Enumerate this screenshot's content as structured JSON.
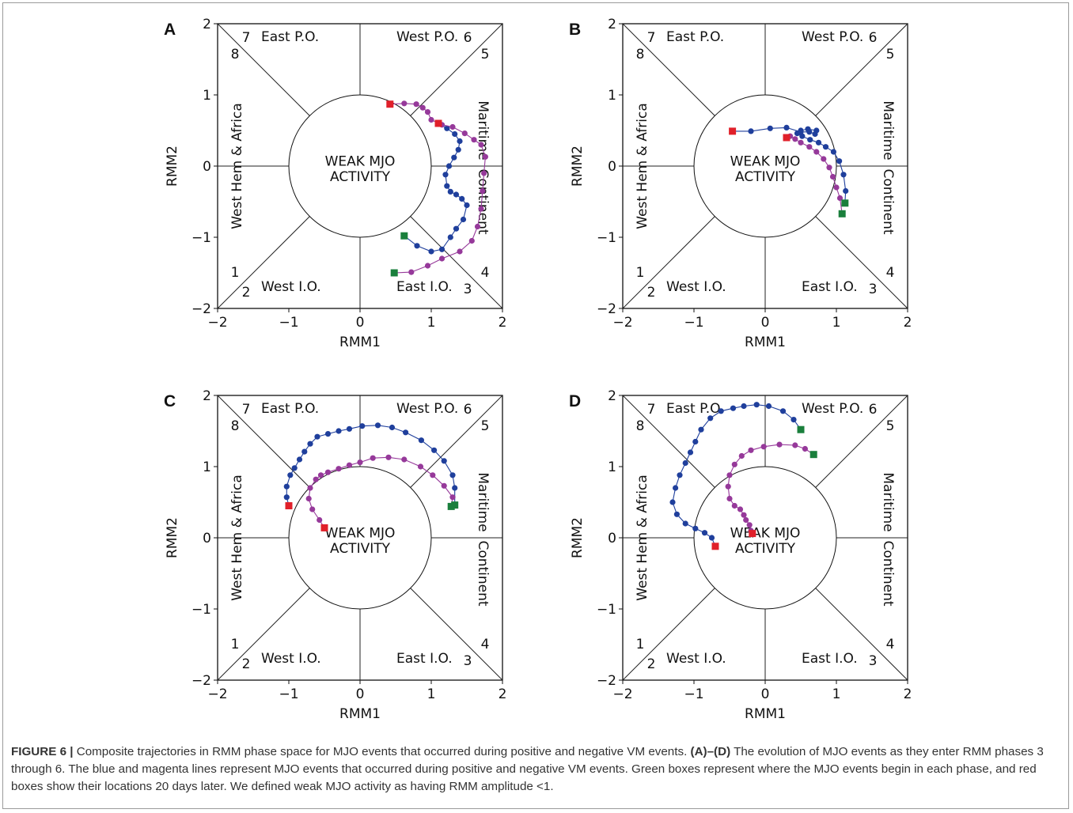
{
  "caption": {
    "label": "FIGURE 6 |",
    "segments": [
      {
        "text": " Composite trajectories in RMM phase space for MJO events that occurred during positive and negative VM events. ",
        "bold": false
      },
      {
        "text": "(A)–(D)",
        "bold": true
      },
      {
        "text": " The evolution of MJO events as they enter RMM phases 3 through 6. The blue and magenta lines represent MJO events that occurred during positive and negative VM events. Green boxes represent where the MJO events begin in each phase, and red boxes show their locations 20 days later. We defined weak MJO activity as having RMM amplitude <1.",
        "bold": false
      }
    ]
  },
  "colors": {
    "positive_vm": "#1f3f9c",
    "negative_vm": "#96399a",
    "start_box": "#1a7f3c",
    "end_box": "#e0202a"
  },
  "chart_data": [
    {
      "panel": "A",
      "type": "scatter",
      "xlabel": "RMM1",
      "ylabel": "RMM2",
      "xlim": [
        -2,
        2
      ],
      "ylim": [
        -2,
        2
      ],
      "ticks": [
        "−2",
        "−1",
        "0",
        "1",
        "2"
      ],
      "center_text": [
        "WEAK MJO",
        "ACTIVITY"
      ],
      "phase_numbers": [
        "1",
        "2",
        "3",
        "4",
        "5",
        "6",
        "7",
        "8"
      ],
      "region_labels": {
        "top": [
          "East P.O.",
          "West P.O."
        ],
        "bottom": [
          "West I.O.",
          "East I.O."
        ],
        "left": "West Hem & Africa",
        "right": [
          "Maritime",
          "Continent"
        ]
      },
      "series": [
        {
          "color": "blue",
          "points": [
            [
              0.62,
              -0.98
            ],
            [
              0.8,
              -1.12
            ],
            [
              1.0,
              -1.2
            ],
            [
              1.15,
              -1.17
            ],
            [
              1.27,
              -1.0
            ],
            [
              1.35,
              -0.88
            ],
            [
              1.45,
              -0.75
            ],
            [
              1.5,
              -0.55
            ],
            [
              1.43,
              -0.46
            ],
            [
              1.35,
              -0.4
            ],
            [
              1.27,
              -0.36
            ],
            [
              1.22,
              -0.28
            ],
            [
              1.2,
              -0.12
            ],
            [
              1.25,
              0.0
            ],
            [
              1.32,
              0.12
            ],
            [
              1.38,
              0.23
            ],
            [
              1.4,
              0.35
            ],
            [
              1.33,
              0.45
            ],
            [
              1.22,
              0.53
            ],
            [
              1.1,
              0.6
            ]
          ]
        },
        {
          "color": "magenta",
          "points": [
            [
              0.48,
              -1.5
            ],
            [
              0.72,
              -1.49
            ],
            [
              0.95,
              -1.4
            ],
            [
              1.15,
              -1.3
            ],
            [
              1.4,
              -1.2
            ],
            [
              1.57,
              -1.05
            ],
            [
              1.65,
              -0.85
            ],
            [
              1.7,
              -0.6
            ],
            [
              1.72,
              -0.35
            ],
            [
              1.74,
              -0.1
            ],
            [
              1.76,
              0.13
            ],
            [
              1.7,
              0.3
            ],
            [
              1.6,
              0.37
            ],
            [
              1.47,
              0.46
            ],
            [
              1.3,
              0.55
            ],
            [
              1.15,
              0.58
            ],
            [
              1.0,
              0.65
            ],
            [
              0.95,
              0.76
            ],
            [
              0.88,
              0.82
            ],
            [
              0.79,
              0.87
            ],
            [
              0.62,
              0.88
            ],
            [
              0.42,
              0.87
            ]
          ]
        }
      ],
      "start_boxes": [
        [
          0.62,
          -0.98
        ],
        [
          0.48,
          -1.5
        ]
      ],
      "end_boxes": [
        [
          1.1,
          0.6
        ],
        [
          0.42,
          0.87
        ]
      ]
    },
    {
      "panel": "B",
      "type": "scatter",
      "xlabel": "RMM1",
      "ylabel": "RMM2",
      "xlim": [
        -2,
        2
      ],
      "ylim": [
        -2,
        2
      ],
      "ticks": [
        "−2",
        "−1",
        "0",
        "1",
        "2"
      ],
      "center_text": [
        "WEAK MJO",
        "ACTIVITY"
      ],
      "phase_numbers": [
        "1",
        "2",
        "3",
        "4",
        "5",
        "6",
        "7",
        "8"
      ],
      "region_labels": {
        "top": [
          "East P.O.",
          "West P.O."
        ],
        "bottom": [
          "West I.O.",
          "East I.O."
        ],
        "left": "West Hem & Africa",
        "right": [
          "Maritime",
          "Continent"
        ]
      },
      "series": [
        {
          "color": "blue",
          "points": [
            [
              1.12,
              -0.52
            ],
            [
              1.13,
              -0.35
            ],
            [
              1.1,
              -0.12
            ],
            [
              1.04,
              0.07
            ],
            [
              0.96,
              0.2
            ],
            [
              0.85,
              0.27
            ],
            [
              0.75,
              0.33
            ],
            [
              0.63,
              0.37
            ],
            [
              0.52,
              0.42
            ],
            [
              0.45,
              0.46
            ],
            [
              0.5,
              0.5
            ],
            [
              0.6,
              0.52
            ],
            [
              0.72,
              0.5
            ],
            [
              0.7,
              0.45
            ],
            [
              0.62,
              0.48
            ],
            [
              0.5,
              0.48
            ],
            [
              0.3,
              0.54
            ],
            [
              0.07,
              0.53
            ],
            [
              -0.2,
              0.49
            ],
            [
              -0.46,
              0.49
            ]
          ]
        },
        {
          "color": "magenta",
          "points": [
            [
              1.08,
              -0.67
            ],
            [
              1.05,
              -0.45
            ],
            [
              1.0,
              -0.3
            ],
            [
              0.95,
              -0.15
            ],
            [
              0.9,
              -0.02
            ],
            [
              0.82,
              0.1
            ],
            [
              0.72,
              0.2
            ],
            [
              0.62,
              0.27
            ],
            [
              0.5,
              0.33
            ],
            [
              0.42,
              0.38
            ],
            [
              0.35,
              0.42
            ],
            [
              0.3,
              0.4
            ]
          ]
        }
      ],
      "start_boxes": [
        [
          1.12,
          -0.52
        ],
        [
          1.08,
          -0.67
        ]
      ],
      "end_boxes": [
        [
          -0.46,
          0.49
        ],
        [
          0.3,
          0.4
        ]
      ]
    },
    {
      "panel": "C",
      "type": "scatter",
      "xlabel": "RMM1",
      "ylabel": "RMM2",
      "xlim": [
        -2,
        2
      ],
      "ylim": [
        -2,
        2
      ],
      "ticks": [
        "−2",
        "−1",
        "0",
        "1",
        "2"
      ],
      "center_text": [
        "WEAK MJO",
        "ACTIVITY"
      ],
      "phase_numbers": [
        "1",
        "2",
        "3",
        "4",
        "5",
        "6",
        "7",
        "8"
      ],
      "region_labels": {
        "top": [
          "East P.O.",
          "West P.O."
        ],
        "bottom": [
          "West I.O.",
          "East I.O."
        ],
        "left": "West Hem & Africa",
        "right": [
          "Maritime",
          "Continent"
        ]
      },
      "series": [
        {
          "color": "blue",
          "points": [
            [
              1.33,
              0.46
            ],
            [
              1.33,
              0.7
            ],
            [
              1.3,
              0.88
            ],
            [
              1.18,
              1.08
            ],
            [
              1.04,
              1.23
            ],
            [
              0.86,
              1.37
            ],
            [
              0.64,
              1.48
            ],
            [
              0.45,
              1.55
            ],
            [
              0.25,
              1.58
            ],
            [
              0.03,
              1.57
            ],
            [
              -0.15,
              1.53
            ],
            [
              -0.3,
              1.5
            ],
            [
              -0.45,
              1.46
            ],
            [
              -0.6,
              1.42
            ],
            [
              -0.7,
              1.32
            ],
            [
              -0.78,
              1.21
            ],
            [
              -0.85,
              1.1
            ],
            [
              -0.92,
              0.98
            ],
            [
              -0.98,
              0.88
            ],
            [
              -1.03,
              0.72
            ],
            [
              -1.03,
              0.57
            ],
            [
              -1.0,
              0.45
            ]
          ]
        },
        {
          "color": "magenta",
          "points": [
            [
              1.28,
              0.44
            ],
            [
              1.3,
              0.57
            ],
            [
              1.18,
              0.73
            ],
            [
              1.02,
              0.88
            ],
            [
              0.85,
              1.0
            ],
            [
              0.62,
              1.1
            ],
            [
              0.4,
              1.13
            ],
            [
              0.18,
              1.12
            ],
            [
              0.0,
              1.06
            ],
            [
              -0.15,
              1.02
            ],
            [
              -0.3,
              0.97
            ],
            [
              -0.45,
              0.92
            ],
            [
              -0.55,
              0.88
            ],
            [
              -0.62,
              0.82
            ],
            [
              -0.7,
              0.7
            ],
            [
              -0.72,
              0.55
            ],
            [
              -0.67,
              0.4
            ],
            [
              -0.57,
              0.25
            ],
            [
              -0.5,
              0.14
            ]
          ]
        }
      ],
      "start_boxes": [
        [
          1.33,
          0.46
        ],
        [
          1.28,
          0.44
        ]
      ],
      "end_boxes": [
        [
          -1.0,
          0.45
        ],
        [
          -0.5,
          0.14
        ]
      ]
    },
    {
      "panel": "D",
      "type": "scatter",
      "xlabel": "RMM1",
      "ylabel": "RMM2",
      "xlim": [
        -2,
        2
      ],
      "ylim": [
        -2,
        2
      ],
      "ticks": [
        "−2",
        "−1",
        "0",
        "1",
        "2"
      ],
      "center_text": [
        "WEAK MJO",
        "ACTIVITY"
      ],
      "phase_numbers": [
        "1",
        "2",
        "3",
        "4",
        "5",
        "6",
        "7",
        "8"
      ],
      "region_labels": {
        "top": [
          "East P.O.",
          "West P.O."
        ],
        "bottom": [
          "West I.O.",
          "East I.O."
        ],
        "left": "West Hem & Africa",
        "right": [
          "Maritime",
          "Continent"
        ]
      },
      "series": [
        {
          "color": "blue",
          "points": [
            [
              0.5,
              1.52
            ],
            [
              0.4,
              1.66
            ],
            [
              0.25,
              1.78
            ],
            [
              0.05,
              1.85
            ],
            [
              -0.12,
              1.87
            ],
            [
              -0.3,
              1.85
            ],
            [
              -0.45,
              1.82
            ],
            [
              -0.62,
              1.78
            ],
            [
              -0.77,
              1.68
            ],
            [
              -0.9,
              1.52
            ],
            [
              -0.98,
              1.35
            ],
            [
              -1.05,
              1.2
            ],
            [
              -1.12,
              1.05
            ],
            [
              -1.2,
              0.88
            ],
            [
              -1.26,
              0.7
            ],
            [
              -1.3,
              0.5
            ],
            [
              -1.24,
              0.33
            ],
            [
              -1.12,
              0.2
            ],
            [
              -0.98,
              0.13
            ],
            [
              -0.85,
              0.07
            ],
            [
              -0.75,
              0.0
            ],
            [
              -0.7,
              -0.12
            ]
          ]
        },
        {
          "color": "magenta",
          "points": [
            [
              0.68,
              1.17
            ],
            [
              0.56,
              1.25
            ],
            [
              0.42,
              1.3
            ],
            [
              0.2,
              1.31
            ],
            [
              -0.02,
              1.28
            ],
            [
              -0.2,
              1.23
            ],
            [
              -0.33,
              1.15
            ],
            [
              -0.43,
              1.03
            ],
            [
              -0.5,
              0.88
            ],
            [
              -0.52,
              0.72
            ],
            [
              -0.5,
              0.55
            ],
            [
              -0.43,
              0.45
            ],
            [
              -0.35,
              0.4
            ],
            [
              -0.3,
              0.32
            ],
            [
              -0.27,
              0.25
            ],
            [
              -0.22,
              0.18
            ],
            [
              -0.2,
              0.1
            ],
            [
              -0.18,
              0.06
            ]
          ]
        }
      ],
      "start_boxes": [
        [
          0.5,
          1.52
        ],
        [
          0.68,
          1.17
        ]
      ],
      "end_boxes": [
        [
          -0.7,
          -0.12
        ],
        [
          -0.18,
          0.06
        ]
      ]
    }
  ]
}
